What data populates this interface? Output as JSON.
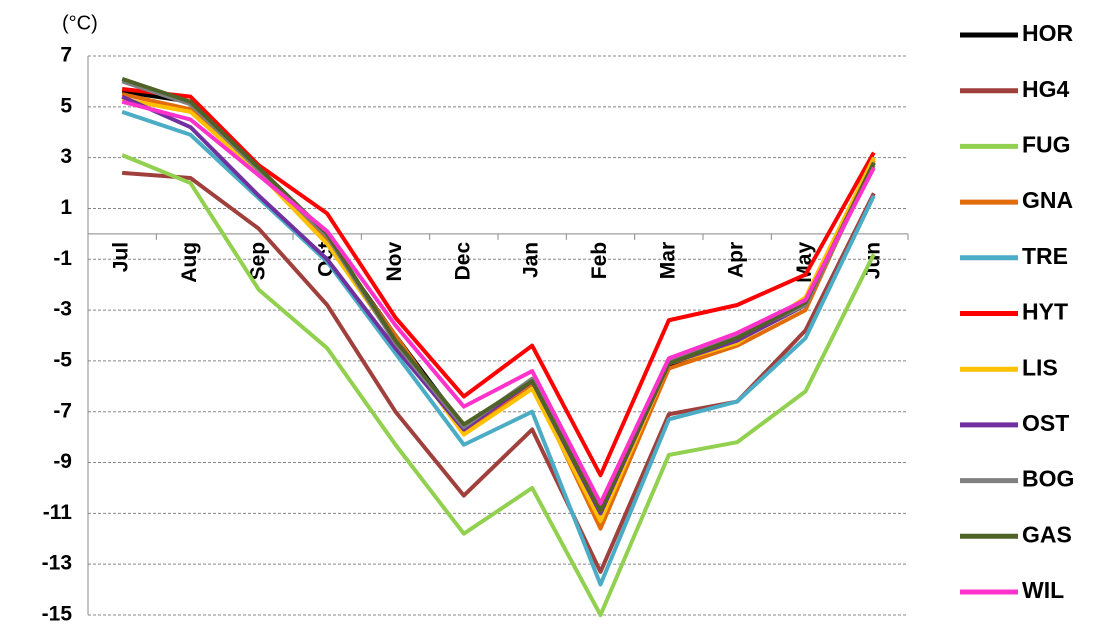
{
  "chart_data": {
    "type": "line",
    "y_unit": "(°C)",
    "categories": [
      "Jul",
      "Aug",
      "Sep",
      "Oct",
      "Nov",
      "Dec",
      "Jan",
      "Feb",
      "Mar",
      "Apr",
      "May",
      "Jun"
    ],
    "ylim": [
      -15,
      7
    ],
    "yticks": [
      -15,
      -13,
      -11,
      -9,
      -7,
      -5,
      -3,
      -1,
      1,
      3,
      5,
      7
    ],
    "grid": true,
    "series": [
      {
        "name": "HOR",
        "color": "#000000",
        "values": [
          5.6,
          5.2,
          2.5,
          -0.2,
          -4,
          -7.6,
          -5.8,
          -11,
          -5.2,
          -4.2,
          -2.8,
          2.8
        ]
      },
      {
        "name": "HG4",
        "color": "#a0403c",
        "values": [
          2.4,
          2.2,
          0.2,
          -2.8,
          -7,
          -10.3,
          -7.7,
          -13.3,
          -7.1,
          -6.6,
          -3.8,
          1.6
        ]
      },
      {
        "name": "FUG",
        "color": "#92d050",
        "values": [
          3.1,
          2.0,
          -2.2,
          -4.5,
          -8.3,
          -11.8,
          -10,
          -15,
          -8.7,
          -8.2,
          -6.2,
          -0.8
        ]
      },
      {
        "name": "GNA",
        "color": "#e36c0a",
        "values": [
          5.5,
          4.9,
          2.4,
          -0.3,
          -4,
          -7.8,
          -5.9,
          -11.6,
          -5.3,
          -4.4,
          -3.0,
          2.9
        ]
      },
      {
        "name": "TRE",
        "color": "#4bacc6",
        "values": [
          4.8,
          3.9,
          1.4,
          -1.1,
          -4.7,
          -8.3,
          -7,
          -13.8,
          -7.3,
          -6.6,
          -4.1,
          1.5
        ]
      },
      {
        "name": "HYT",
        "color": "#ff0000",
        "values": [
          5.7,
          5.4,
          2.7,
          0.8,
          -3.3,
          -6.4,
          -4.4,
          -9.5,
          -3.4,
          -2.8,
          -1.6,
          3.2
        ]
      },
      {
        "name": "LIS",
        "color": "#ffc000",
        "values": [
          5.3,
          4.8,
          2.4,
          -0.4,
          -4.2,
          -7.9,
          -6.1,
          -11.3,
          -5.1,
          -4.3,
          -2.5,
          3.0
        ]
      },
      {
        "name": "OST",
        "color": "#7030a0",
        "values": [
          5.4,
          4.2,
          1.5,
          -1.0,
          -4.5,
          -7.7,
          -5.8,
          -11,
          -5.1,
          -4.2,
          -2.8,
          2.8
        ]
      },
      {
        "name": "BOG",
        "color": "#808080",
        "values": [
          6.0,
          5.1,
          2.5,
          -0.1,
          -4.3,
          -7.6,
          -5.7,
          -10.8,
          -5.0,
          -4.0,
          -2.8,
          2.7
        ]
      },
      {
        "name": "GAS",
        "color": "#4f6228",
        "values": [
          6.1,
          5.2,
          2.6,
          0,
          -4.2,
          -7.5,
          -5.8,
          -10.9,
          -5.1,
          -4.1,
          -2.7,
          2.8
        ]
      },
      {
        "name": "WIL",
        "color": "#ff33cc",
        "values": [
          5.2,
          4.5,
          2.3,
          0.1,
          -3.6,
          -6.8,
          -5.4,
          -10.6,
          -4.9,
          -3.9,
          -2.6,
          2.6
        ]
      }
    ]
  }
}
